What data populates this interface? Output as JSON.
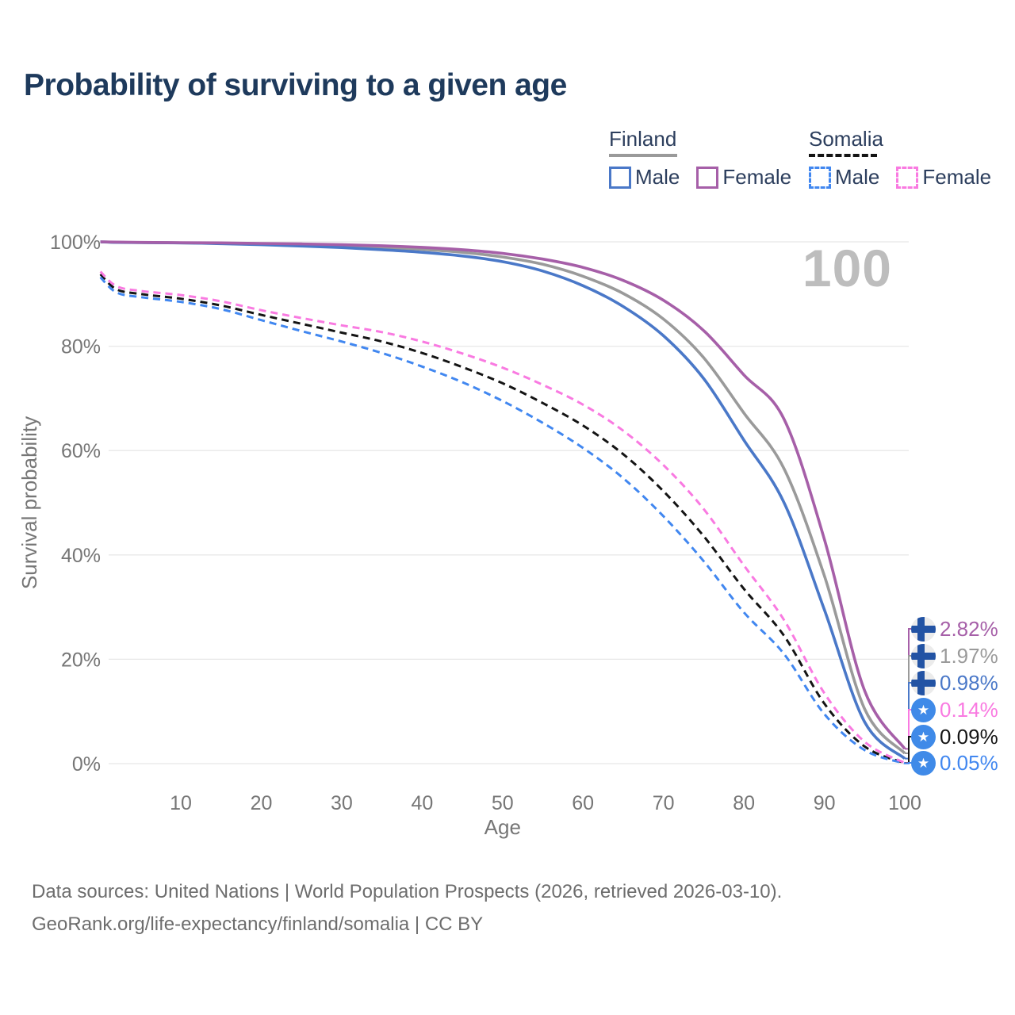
{
  "title": "Probability of surviving to a given age",
  "watermark": "100",
  "icons": {
    "somalia_star": "★"
  },
  "legend": {
    "groups": [
      {
        "country": "Finland",
        "line_style": "solid",
        "line_color": "#9a9a9a",
        "items": [
          {
            "label": "Male",
            "color": "#4a78c8",
            "dashed": false
          },
          {
            "label": "Female",
            "color": "#a65fa8",
            "dashed": false
          }
        ]
      },
      {
        "country": "Somalia",
        "line_style": "dashed",
        "line_color": "#141414",
        "items": [
          {
            "label": "Male",
            "color": "#4187f0",
            "dashed": true
          },
          {
            "label": "Female",
            "color": "#f97ae1",
            "dashed": true
          }
        ]
      }
    ]
  },
  "chart_data": {
    "type": "line",
    "title": "Probability of surviving to a given age",
    "xlabel": "Age",
    "ylabel": "Survival probability",
    "xlim": [
      0,
      100
    ],
    "ylim": [
      0,
      100
    ],
    "grid": "horizontal",
    "xticks": [
      10,
      20,
      30,
      40,
      50,
      60,
      70,
      80,
      90,
      100
    ],
    "yticks": [
      {
        "value": 0,
        "label": "0%"
      },
      {
        "value": 20,
        "label": "20%"
      },
      {
        "value": 40,
        "label": "40%"
      },
      {
        "value": 60,
        "label": "60%"
      },
      {
        "value": 80,
        "label": "80%"
      },
      {
        "value": 100,
        "label": "100%"
      }
    ],
    "ages": [
      0,
      2,
      5,
      10,
      15,
      20,
      25,
      30,
      35,
      40,
      45,
      50,
      55,
      60,
      65,
      70,
      75,
      80,
      85,
      90,
      95,
      100
    ],
    "series": [
      {
        "name": "Finland Male",
        "color": "#4a78c8",
        "dash": "solid",
        "values": [
          100,
          99.9,
          99.85,
          99.8,
          99.65,
          99.45,
          99.2,
          98.9,
          98.5,
          98.0,
          97.3,
          96.2,
          94.4,
          91.6,
          87.6,
          82.0,
          73.8,
          62.0,
          50.0,
          29.5,
          8.0,
          0.98
        ]
      },
      {
        "name": "Finland Female",
        "color": "#a65fa8",
        "dash": "solid",
        "values": [
          100,
          99.95,
          99.9,
          99.85,
          99.8,
          99.7,
          99.6,
          99.45,
          99.25,
          98.95,
          98.5,
          97.8,
          96.7,
          95.1,
          92.6,
          88.8,
          83.0,
          74.5,
          66.0,
          43.0,
          14.0,
          2.82
        ]
      },
      {
        "name": "Finland Both sexes",
        "color": "#9a9a9a",
        "dash": "solid",
        "values": [
          100,
          99.92,
          99.88,
          99.8,
          99.72,
          99.6,
          99.45,
          99.25,
          98.95,
          98.55,
          98.0,
          97.1,
          95.7,
          93.4,
          90.1,
          85.2,
          77.8,
          67.2,
          56.5,
          36.0,
          10.5,
          1.97
        ]
      },
      {
        "name": "Somalia Male",
        "color": "#4187f0",
        "dash": "dashed",
        "values": [
          93.2,
          90.3,
          89.4,
          88.5,
          87.1,
          85.0,
          82.9,
          80.9,
          78.7,
          76.1,
          73.1,
          69.5,
          65.3,
          60.5,
          54.7,
          47.4,
          38.8,
          29.0,
          21.0,
          9.5,
          2.6,
          0.05
        ]
      },
      {
        "name": "Somalia Female",
        "color": "#f97ae1",
        "dash": "dashed",
        "values": [
          94.3,
          91.5,
          90.6,
          89.8,
          88.6,
          86.9,
          85.4,
          84.0,
          82.7,
          80.9,
          78.6,
          75.9,
          72.6,
          68.8,
          63.8,
          57.2,
          48.8,
          38.0,
          27.5,
          13.5,
          4.2,
          0.14
        ]
      },
      {
        "name": "Somalia Both sexes",
        "color": "#141414",
        "dash": "dashed",
        "values": [
          93.8,
          90.9,
          90.0,
          89.1,
          87.8,
          86.0,
          84.3,
          82.6,
          80.9,
          78.7,
          76.0,
          72.9,
          69.1,
          64.8,
          59.3,
          52.2,
          43.6,
          33.5,
          24.5,
          11.5,
          3.3,
          0.09
        ]
      }
    ],
    "endpoints": [
      {
        "label": "2.82%",
        "color": "#a65fa8",
        "flag": "finland",
        "series_index": 1
      },
      {
        "label": "1.97%",
        "color": "#9a9a9a",
        "flag": "finland",
        "series_index": 2
      },
      {
        "label": "0.98%",
        "color": "#4a78c8",
        "flag": "finland",
        "series_index": 0
      },
      {
        "label": "0.14%",
        "color": "#f97ae1",
        "flag": "somalia",
        "series_index": 4
      },
      {
        "label": "0.09%",
        "color": "#141414",
        "flag": "somalia",
        "series_index": 5
      },
      {
        "label": "0.05%",
        "color": "#4187f0",
        "flag": "somalia",
        "series_index": 3
      }
    ]
  },
  "footer": {
    "line1": "Data sources: United Nations | World Population Prospects (2026, retrieved 2026-03-10).",
    "line2": "GeoRank.org/life-expectancy/finland/somalia | CC BY"
  }
}
